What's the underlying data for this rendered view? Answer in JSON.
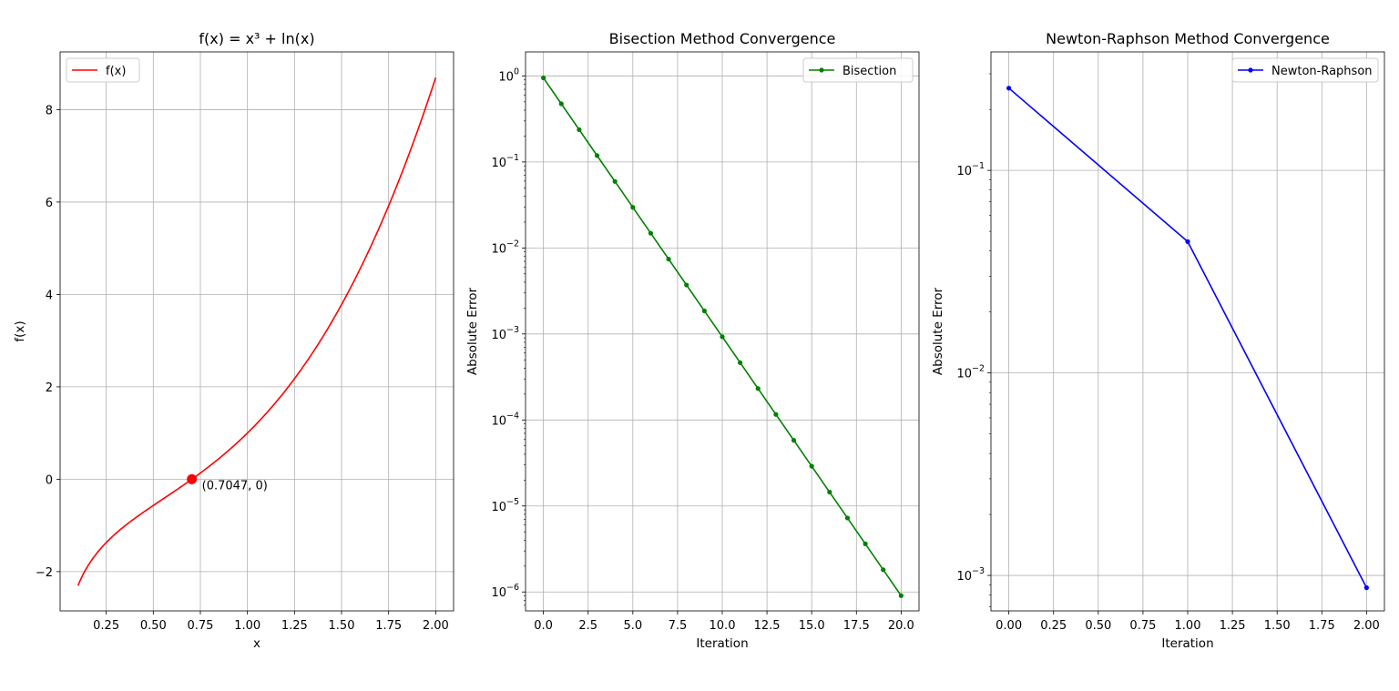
{
  "chart_data": [
    {
      "type": "line",
      "title": "f(x) = x³ + ln(x)",
      "xlabel": "x",
      "ylabel": "f(x)",
      "xlim": [
        0.005,
        2.095
      ],
      "ylim": [
        -2.85,
        9.25
      ],
      "x_ticks": [
        0.25,
        0.5,
        0.75,
        1.0,
        1.25,
        1.5,
        1.75,
        2.0
      ],
      "x_tick_labels": [
        "0.25",
        "0.50",
        "0.75",
        "1.00",
        "1.25",
        "1.50",
        "1.75",
        "2.00"
      ],
      "y_ticks": [
        -2,
        0,
        2,
        4,
        6,
        8
      ],
      "y_tick_labels": [
        "−2",
        "0",
        "2",
        "4",
        "6",
        "8"
      ],
      "grid": true,
      "legend": {
        "position": "upper-left",
        "entries": [
          {
            "label": "f(x)",
            "color": "#ff0000",
            "marker": false
          }
        ]
      },
      "series": [
        {
          "name": "f(x)",
          "function": "x^3 + ln(x)",
          "x_start": 0.1,
          "x_end": 2.0,
          "color": "#ff0000"
        }
      ],
      "root_marker": {
        "x": 0.7047,
        "y": 0,
        "color": "#ff0000"
      },
      "annotation": "(0.7047, 0)"
    },
    {
      "type": "line",
      "title": "Bisection Method Convergence",
      "xlabel": "Iteration",
      "ylabel": "Absolute Error",
      "yscale": "log",
      "xlim": [
        -1.0,
        21.0
      ],
      "ylim_log10": [
        -6.22,
        0.28
      ],
      "x_ticks": [
        0,
        2.5,
        5,
        7.5,
        10,
        12.5,
        15,
        17.5,
        20
      ],
      "x_tick_labels": [
        "0.0",
        "2.5",
        "5.0",
        "7.5",
        "10.0",
        "12.5",
        "15.0",
        "17.5",
        "20.0"
      ],
      "y_ticks_exp": [
        0,
        -1,
        -2,
        -3,
        -4,
        -5,
        -6
      ],
      "grid": true,
      "legend": {
        "position": "upper-right",
        "entries": [
          {
            "label": "Bisection",
            "color": "#008000",
            "marker": true
          }
        ]
      },
      "series": [
        {
          "name": "Bisection",
          "color": "#008000",
          "x": [
            0,
            1,
            2,
            3,
            4,
            5,
            6,
            7,
            8,
            9,
            10,
            11,
            12,
            13,
            14,
            15,
            16,
            17,
            18,
            19,
            20
          ],
          "y": [
            0.95,
            0.475,
            0.2375,
            0.11875,
            0.059375,
            0.0296875,
            0.01484375,
            0.007421875,
            0.0037109375,
            0.00185546875,
            0.000927734375,
            0.0004638671875,
            0.00023193359375,
            0.000115966796875,
            5.79833984375e-05,
            2.899169921875e-05,
            1.4495849609375e-05,
            7.2479248046875e-06,
            3.62396240234375e-06,
            1.811981201171875e-06,
            9.059906005859375e-07
          ]
        }
      ]
    },
    {
      "type": "line",
      "title": "Newton-Raphson Method Convergence",
      "xlabel": "Iteration",
      "ylabel": "Absolute Error",
      "yscale": "log",
      "xlim": [
        -0.1,
        2.1
      ],
      "ylim_log10": [
        -3.175,
        -0.415
      ],
      "x_ticks": [
        0,
        0.25,
        0.5,
        0.75,
        1.0,
        1.25,
        1.5,
        1.75,
        2.0
      ],
      "x_tick_labels": [
        "0.00",
        "0.25",
        "0.50",
        "0.75",
        "1.00",
        "1.25",
        "1.50",
        "1.75",
        "2.00"
      ],
      "y_ticks_exp": [
        -1,
        -2,
        -3
      ],
      "grid": true,
      "legend": {
        "position": "upper-right",
        "entries": [
          {
            "label": "Newton-Raphson",
            "color": "#0000ff",
            "marker": true
          }
        ]
      },
      "series": [
        {
          "name": "Newton-Raphson",
          "color": "#0000ff",
          "x": [
            0,
            1,
            2
          ],
          "y": [
            0.2547,
            0.0445,
            0.00087
          ]
        }
      ]
    }
  ]
}
